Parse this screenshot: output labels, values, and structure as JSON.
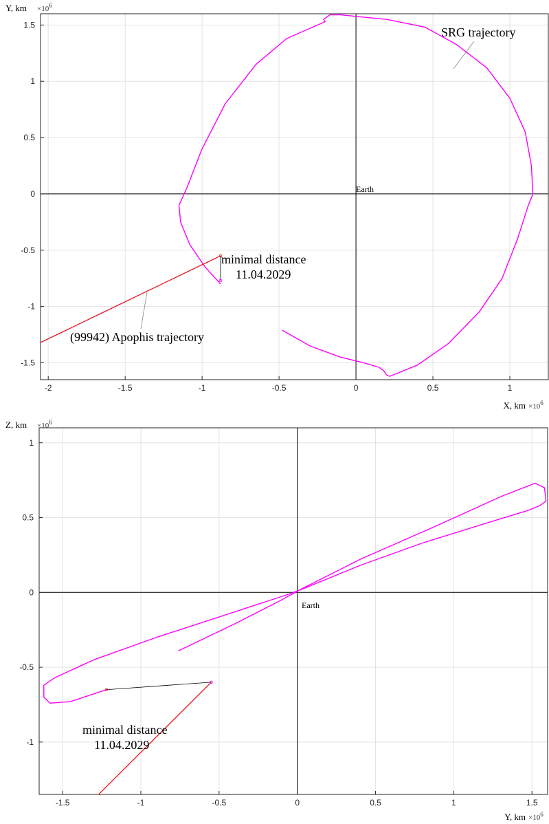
{
  "chart_data": [
    {
      "type": "line",
      "xlabel": "X, km",
      "ylabel": "Y, km",
      "x_exponent": "×10",
      "y_exponent": "×10",
      "exponent_power": "6",
      "xlim": [
        -2.05,
        1.25
      ],
      "ylim": [
        -1.65,
        1.6
      ],
      "xticks": [
        -2,
        -1.5,
        -1,
        -0.5,
        0,
        0.5,
        1
      ],
      "yticks": [
        -1.5,
        -1,
        -0.5,
        0,
        0.5,
        1,
        1.5
      ],
      "xtick_labels": [
        "-2",
        "-1.5",
        "-1",
        "-0.5",
        "0",
        "0.5",
        "1"
      ],
      "ytick_labels": [
        "-1.5",
        "-1",
        "-0.5",
        "0",
        "0.5",
        "1",
        "1.5"
      ],
      "grid": true,
      "colors": {
        "srg": "#ff00ff",
        "apophis": "#e8141c",
        "link": "#000000"
      },
      "series": [
        {
          "name": "SRG trajectory",
          "x": [
            -0.48,
            -0.3,
            -0.1,
            0.05,
            0.15,
            0.18,
            0.2,
            0.22,
            0.4,
            0.6,
            0.8,
            0.95,
            1.05,
            1.12,
            1.15,
            1.14,
            1.1,
            1.0,
            0.85,
            0.65,
            0.45,
            0.2,
            0.05,
            -0.1,
            -0.17,
            -0.21,
            -0.2,
            -0.25,
            -0.45,
            -0.65,
            -0.85,
            -1.0,
            -1.1,
            -1.15,
            -1.14,
            -1.08,
            -0.98,
            -0.88
          ],
          "y": [
            -1.21,
            -1.35,
            -1.45,
            -1.5,
            -1.54,
            -1.57,
            -1.61,
            -1.62,
            -1.52,
            -1.33,
            -1.05,
            -0.75,
            -0.4,
            -0.1,
            0.0,
            0.25,
            0.55,
            0.85,
            1.12,
            1.33,
            1.48,
            1.55,
            1.57,
            1.59,
            1.59,
            1.55,
            1.53,
            1.5,
            1.38,
            1.15,
            0.8,
            0.4,
            0.05,
            -0.1,
            -0.25,
            -0.45,
            -0.65,
            -0.8
          ]
        },
        {
          "name": "(99942) Apophis trajectory",
          "x": [
            -2.05,
            -0.88
          ],
          "y": [
            -1.32,
            -0.55
          ]
        }
      ],
      "min_link": {
        "x": [
          -0.88,
          -0.88
        ],
        "y": [
          -0.55,
          -0.77
        ]
      },
      "annotations": {
        "srg_label": "SRG trajectory",
        "apophis_label": "(99942) Apophis trajectory",
        "min_line1": "minimal distance",
        "min_line2": "11.04.2029",
        "earth": "Earth"
      }
    },
    {
      "type": "line",
      "xlabel": "Y, km",
      "ylabel": "Z, km",
      "x_exponent": "×10",
      "y_exponent": "×10",
      "exponent_power": "6",
      "xlim": [
        -1.65,
        1.6
      ],
      "ylim": [
        -1.35,
        1.1
      ],
      "xticks": [
        -1.5,
        -1,
        -0.5,
        0,
        0.5,
        1,
        1.5
      ],
      "yticks": [
        -1,
        -0.5,
        0,
        0.5,
        1
      ],
      "xtick_labels": [
        "-1.5",
        "-1",
        "-0.5",
        "0",
        "0.5",
        "1",
        "1.5"
      ],
      "ytick_labels": [
        "-1",
        "-0.5",
        "0",
        "0.5",
        "1"
      ],
      "grid": true,
      "colors": {
        "srg": "#ff00ff",
        "apophis": "#e8141c",
        "link": "#000000"
      },
      "series": [
        {
          "name": "SRG trajectory",
          "x": [
            -0.76,
            -0.4,
            -0.1,
            0.02,
            0.4,
            0.9,
            1.3,
            1.52,
            1.58,
            1.59,
            1.55,
            1.48,
            1.2,
            0.8,
            0.4,
            0.05,
            -0.05,
            -0.4,
            -0.9,
            -1.3,
            -1.55,
            -1.62,
            -1.62,
            -1.58,
            -1.45,
            -1.22
          ],
          "y": [
            -0.39,
            -0.21,
            -0.05,
            0.02,
            0.22,
            0.45,
            0.64,
            0.73,
            0.7,
            0.61,
            0.58,
            0.55,
            0.46,
            0.33,
            0.18,
            0.03,
            -0.01,
            -0.13,
            -0.3,
            -0.45,
            -0.57,
            -0.62,
            -0.7,
            -0.74,
            -0.73,
            -0.65
          ]
        },
        {
          "name": "(99942) Apophis trajectory",
          "x": [
            -1.27,
            -0.55
          ],
          "y": [
            -1.35,
            -0.6
          ]
        }
      ],
      "min_link": {
        "x": [
          -1.22,
          -0.55
        ],
        "y": [
          -0.65,
          -0.6
        ]
      },
      "annotations": {
        "min_line1": "minimal distance",
        "min_line2": "11.04.2029",
        "earth": "Earth"
      }
    }
  ]
}
